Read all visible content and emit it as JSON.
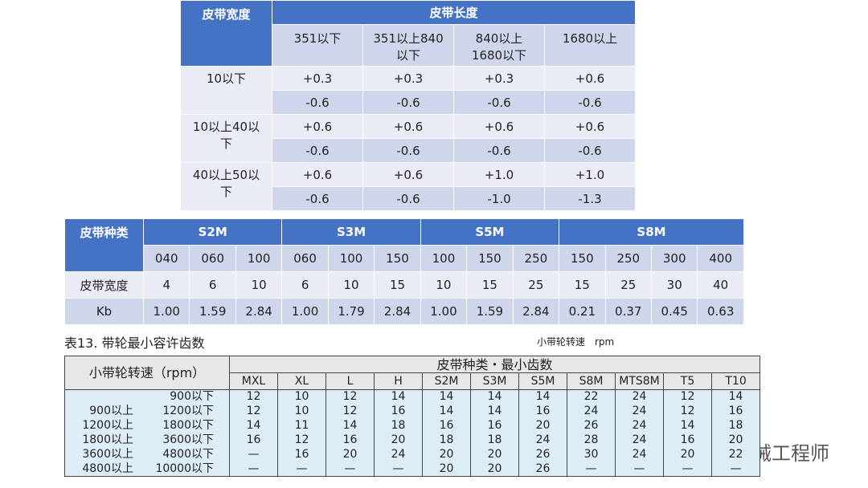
{
  "table1": {
    "header": [
      "皮带宽度",
      "皮带长度"
    ],
    "subheader": [
      "351以下",
      "351以上840以下",
      "840以上1680以下",
      "1680以上"
    ],
    "rows": [
      {
        "label": "10以下",
        "values": [
          [
            "+0.3",
            "+0.3",
            "+0.3",
            "+0.6"
          ],
          [
            "-0.6",
            "-0.6",
            "-0.6",
            "-0.6"
          ]
        ]
      },
      {
        "label": "10以上40以下",
        "values": [
          [
            "+0.6",
            "+0.6",
            "+0.6",
            "+0.6"
          ],
          [
            "-0.6",
            "-0.6",
            "-0.6",
            "-0.6"
          ]
        ]
      },
      {
        "label": "40以上50以下",
        "values": [
          [
            "+0.6",
            "+0.6",
            "+1.0",
            "+1.0"
          ],
          [
            "-0.6",
            "-0.6",
            "-1.0",
            "-1.3"
          ]
        ]
      }
    ]
  },
  "table2": {
    "corner": "皮带种类",
    "groups": [
      {
        "name": "S2M",
        "codes": [
          "040",
          "060",
          "100"
        ]
      },
      {
        "name": "S3M",
        "codes": [
          "060",
          "100",
          "150"
        ]
      },
      {
        "name": "S5M",
        "codes": [
          "100",
          "150",
          "250"
        ]
      },
      {
        "name": "S8M",
        "codes": [
          "150",
          "250",
          "300",
          "400"
        ]
      }
    ],
    "rows": [
      {
        "label": "皮带宽度",
        "values": [
          "4",
          "6",
          "10",
          "6",
          "10",
          "15",
          "10",
          "15",
          "25",
          "15",
          "25",
          "30",
          "40"
        ]
      },
      {
        "label": "Kb",
        "values": [
          "1.00",
          "1.59",
          "2.84",
          "1.00",
          "1.79",
          "2.84",
          "1.00",
          "1.59",
          "2.84",
          "0.21",
          "0.37",
          "0.45",
          "0.63"
        ]
      }
    ]
  },
  "caption": "表13. 带轮最小容许齿数",
  "unit_note": "小带轮转速　rpm",
  "table3": {
    "corner": "小带轮转速（rpm）",
    "group": "皮带种类・最小齿数",
    "columns": [
      "MXL",
      "XL",
      "L",
      "H",
      "S2M",
      "S3M",
      "S5M",
      "S8M",
      "MTS8M",
      "T5",
      "T10"
    ],
    "rows": [
      {
        "to": "900以下",
        "values": [
          "12",
          "10",
          "12",
          "14",
          "14",
          "14",
          "14",
          "22",
          "24",
          "12",
          "14"
        ]
      },
      {
        "from": "900以上",
        "to": "1200以下",
        "values": [
          "12",
          "10",
          "12",
          "16",
          "14",
          "14",
          "16",
          "24",
          "24",
          "12",
          "16"
        ]
      },
      {
        "from": "1200以上",
        "to": "1800以下",
        "values": [
          "14",
          "11",
          "14",
          "18",
          "16",
          "16",
          "20",
          "26",
          "24",
          "14",
          "18"
        ]
      },
      {
        "from": "1800以上",
        "to": "3600以下",
        "values": [
          "16",
          "12",
          "16",
          "20",
          "18",
          "18",
          "24",
          "28",
          "24",
          "16",
          "20"
        ]
      },
      {
        "from": "3600以上",
        "to": "4800以下",
        "values": [
          "—",
          "16",
          "20",
          "24",
          "20",
          "20",
          "26",
          "30",
          "24",
          "20",
          "22"
        ]
      },
      {
        "from": "4800以上",
        "to": "10000以下",
        "values": [
          "—",
          "—",
          "—",
          "—",
          "20",
          "20",
          "26",
          "—",
          "—",
          "—",
          "—"
        ]
      }
    ]
  },
  "watermark": "机械工程师"
}
